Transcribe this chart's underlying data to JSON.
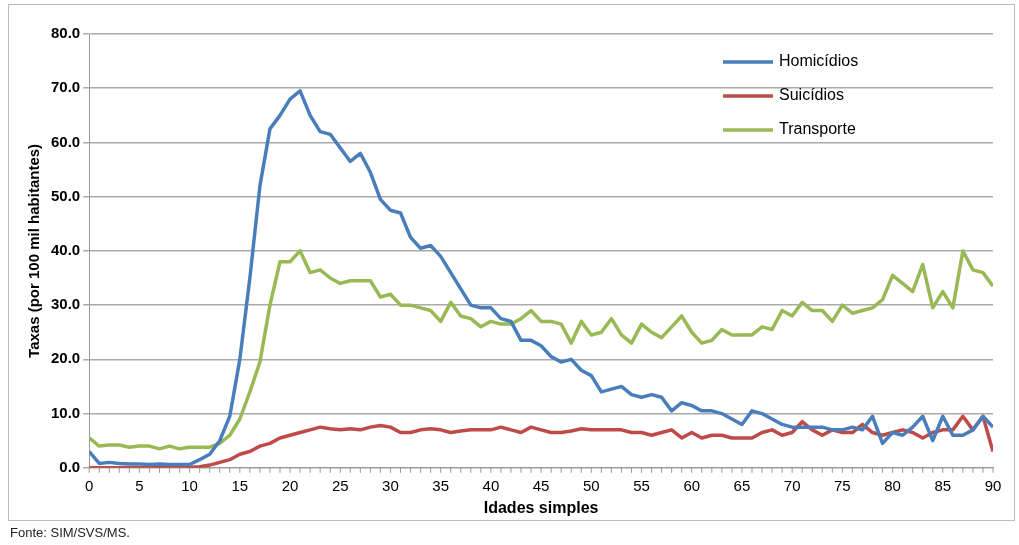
{
  "chart_data": {
    "type": "line",
    "xlabel": "Idades simples",
    "ylabel": "Taxas (por 100 mil habitantes)",
    "x": [
      0,
      1,
      2,
      3,
      4,
      5,
      6,
      7,
      8,
      9,
      10,
      11,
      12,
      13,
      14,
      15,
      16,
      17,
      18,
      19,
      20,
      21,
      22,
      23,
      24,
      25,
      26,
      27,
      28,
      29,
      30,
      31,
      32,
      33,
      34,
      35,
      36,
      37,
      38,
      39,
      40,
      41,
      42,
      43,
      44,
      45,
      46,
      47,
      48,
      49,
      50,
      51,
      52,
      53,
      54,
      55,
      56,
      57,
      58,
      59,
      60,
      61,
      62,
      63,
      64,
      65,
      66,
      67,
      68,
      69,
      70,
      71,
      72,
      73,
      74,
      75,
      76,
      77,
      78,
      79,
      80,
      81,
      82,
      83,
      84,
      85,
      86,
      87,
      88,
      89,
      90
    ],
    "series": [
      {
        "name": "Homicídios",
        "color": "#4a7ebb",
        "values": [
          3.0,
          0.8,
          1.0,
          0.8,
          0.7,
          0.7,
          0.6,
          0.7,
          0.6,
          0.6,
          0.6,
          1.5,
          2.5,
          5,
          9.5,
          20,
          35,
          52,
          62.5,
          65,
          68,
          69.5,
          65,
          62,
          61.5,
          59,
          56.5,
          58,
          54.5,
          49.5,
          47.5,
          47,
          42.5,
          40.5,
          41,
          39,
          36,
          33,
          30,
          29.5,
          29.5,
          27.5,
          27,
          23.5,
          23.5,
          22.5,
          20.5,
          19.5,
          20,
          18,
          17,
          14,
          14.5,
          15,
          13.5,
          13,
          13.5,
          13,
          10.5,
          12,
          11.5,
          10.5,
          10.5,
          10,
          9,
          8,
          10.5,
          10,
          9,
          8,
          7.5,
          7.5,
          7.5,
          7.5,
          7,
          7,
          7.5,
          7,
          9.5,
          4.5,
          6.5,
          6,
          7.5,
          9.5,
          5,
          9.5,
          6,
          6,
          7,
          9.5,
          7.5
        ]
      },
      {
        "name": "Suicídios",
        "color": "#be4b48",
        "values": [
          0,
          0,
          0,
          0,
          0,
          0,
          0,
          0,
          0,
          0,
          0.1,
          0.2,
          0.5,
          1.0,
          1.5,
          2.5,
          3,
          4,
          4.5,
          5.5,
          6,
          6.5,
          7,
          7.5,
          7.2,
          7,
          7.2,
          7,
          7.5,
          7.8,
          7.5,
          6.5,
          6.5,
          7,
          7.2,
          7,
          6.5,
          6.8,
          7,
          7,
          7,
          7.5,
          7,
          6.5,
          7.5,
          7,
          6.5,
          6.5,
          6.8,
          7.2,
          7,
          7,
          7,
          7,
          6.5,
          6.5,
          6,
          6.5,
          7,
          5.5,
          6.5,
          5.5,
          6,
          6,
          5.5,
          5.5,
          5.5,
          6.5,
          7,
          6,
          6.5,
          8.5,
          7,
          6,
          7,
          6.5,
          6.5,
          8,
          6.5,
          6,
          6.5,
          7,
          6.5,
          5.5,
          6.5,
          7,
          7,
          9.5,
          7,
          9.5,
          3
        ]
      },
      {
        "name": "Transporte",
        "color": "#98b954",
        "values": [
          5.5,
          4,
          4.2,
          4.2,
          3.8,
          4,
          4,
          3.5,
          4,
          3.5,
          3.8,
          3.8,
          3.8,
          4.5,
          6,
          9,
          14,
          19.5,
          30,
          38,
          38,
          40,
          36,
          36.5,
          35,
          34,
          34.5,
          34.5,
          34.5,
          31.5,
          32,
          30,
          30,
          29.5,
          29,
          27,
          30.5,
          28,
          27.5,
          26,
          27,
          26.5,
          26.5,
          27.5,
          29,
          27,
          27,
          26.5,
          23,
          27,
          24.5,
          25,
          27.5,
          24.5,
          23,
          26.5,
          25,
          24,
          26,
          28,
          25,
          23,
          23.5,
          25.5,
          24.5,
          24.5,
          24.5,
          26,
          25.5,
          29,
          28,
          30.5,
          29,
          29,
          27,
          30,
          28.5,
          29,
          29.5,
          31,
          35.5,
          34,
          32.5,
          37.5,
          29.5,
          32.5,
          29.5,
          40,
          36.5,
          36,
          33.5
        ]
      }
    ],
    "xlim": [
      0,
      90
    ],
    "xticks": [
      0,
      5,
      10,
      15,
      20,
      25,
      30,
      35,
      40,
      45,
      50,
      55,
      60,
      65,
      70,
      75,
      80,
      85,
      90
    ],
    "ylim": [
      0,
      80
    ],
    "yticks": [
      {
        "value": 0,
        "label": "0.0"
      },
      {
        "value": 10,
        "label": "10.0"
      },
      {
        "value": 20,
        "label": "20.0"
      },
      {
        "value": 30,
        "label": "30.0"
      },
      {
        "value": 40,
        "label": "40.0"
      },
      {
        "value": 50,
        "label": "50.0"
      },
      {
        "value": 60,
        "label": "60.0"
      },
      {
        "value": 70,
        "label": "70.0"
      },
      {
        "value": 80,
        "label": "80.0"
      }
    ],
    "grid": "y",
    "legend": "top right",
    "marker": "none",
    "line_style": "solid",
    "annotations": [
      "Fonte: SIM/SVS/MS."
    ]
  }
}
